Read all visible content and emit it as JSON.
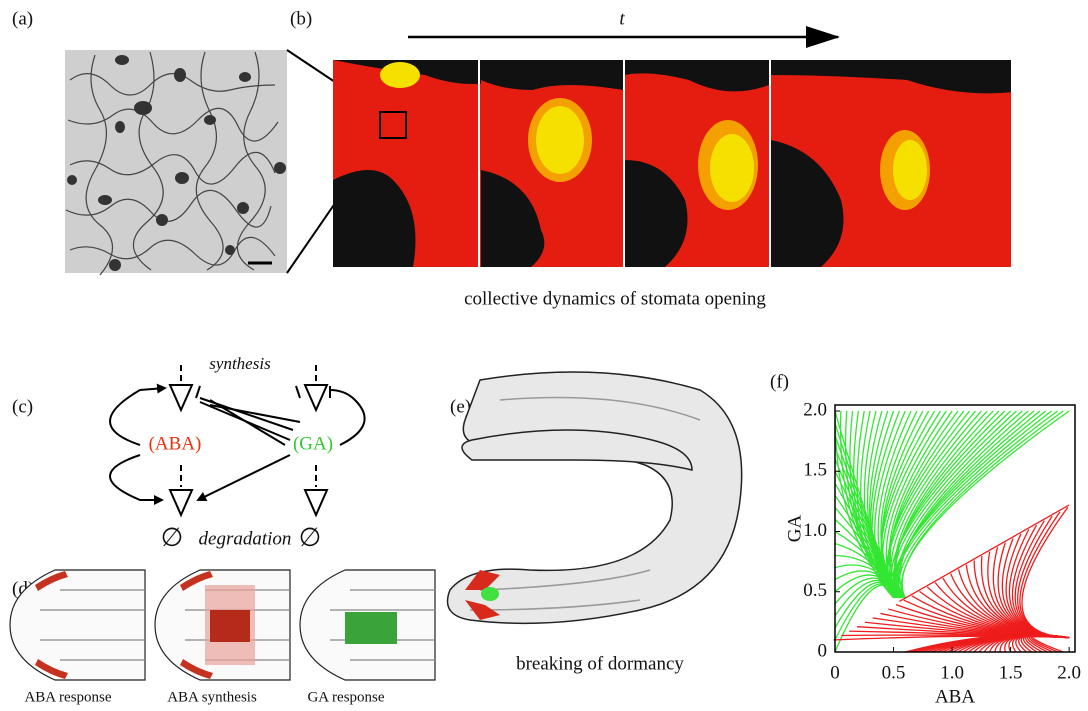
{
  "panels": {
    "a": {
      "label": "(a)"
    },
    "b": {
      "label": "(b)",
      "time_label": "t",
      "caption": "collective dynamics of stomata opening"
    },
    "c": {
      "label": "(c)",
      "synthesis": "synthesis",
      "aba": "(ABA)",
      "ga": "(GA)",
      "degradation": "degradation",
      "empty_set": "∅"
    },
    "d": {
      "label": "(d)",
      "captions": [
        "ABA response",
        "ABA synthesis",
        "GA response"
      ]
    },
    "e": {
      "label": "(e)",
      "caption": "breaking of dormancy"
    },
    "f": {
      "label": "(f)",
      "xlabel": "ABA",
      "ylabel": "GA",
      "xlim": [
        0,
        2.05
      ],
      "ylim": [
        0,
        2.05
      ],
      "xticks": [
        0,
        0.5,
        {
          "value": 1,
          "label": "1.0"
        },
        1.5,
        {
          "value": 2,
          "label": "2.0"
        }
      ],
      "yticks": [
        0,
        0.5,
        {
          "value": 1,
          "label": "1.0"
        },
        1.5,
        {
          "value": 2,
          "label": "2.0"
        }
      ],
      "colors": {
        "ga_dominant": "#33e633",
        "aba_dominant": "#ee1c1c"
      }
    }
  }
}
